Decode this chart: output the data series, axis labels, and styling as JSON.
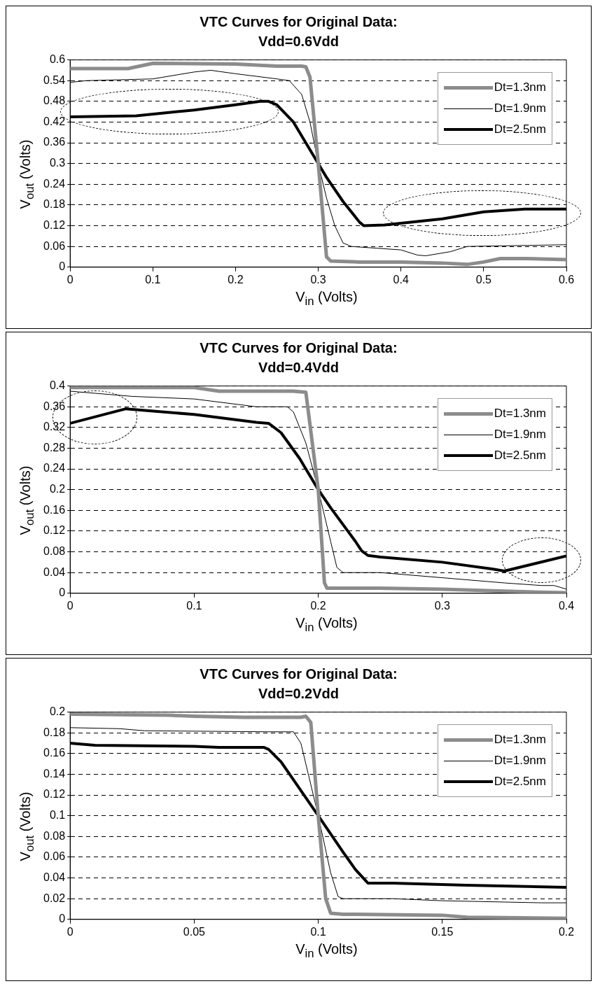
{
  "chart_data": [
    {
      "type": "line",
      "title": "VTC Curves for Original Data:",
      "subtitle": "Vdd=0.6Vdd",
      "xlabel": "V$_{in}$ (Volts)",
      "ylabel": "V$_{out}$ (Volts)",
      "xlim": [
        0,
        0.6
      ],
      "xticks": [
        0,
        0.1,
        0.2,
        0.3,
        0.4,
        0.5,
        0.6
      ],
      "ylim": [
        0,
        0.6
      ],
      "yticks": [
        0,
        0.06,
        0.12,
        0.18,
        0.24,
        0.3,
        0.36,
        0.42,
        0.48,
        0.54,
        0.6
      ],
      "grid": "y",
      "legend": "top right",
      "marker": "none",
      "line_style": "solid",
      "series": [
        {
          "name": "Dt=1.3nm",
          "color": "#8c8c8c",
          "x": [
            0,
            0.07,
            0.1,
            0.2,
            0.25,
            0.28,
            0.285,
            0.29,
            0.3,
            0.31,
            0.315,
            0.35,
            0.4,
            0.45,
            0.48,
            0.5,
            0.52,
            0.55,
            0.6
          ],
          "values": [
            0.575,
            0.575,
            0.59,
            0.588,
            0.582,
            0.582,
            0.58,
            0.55,
            0.3,
            0.03,
            0.018,
            0.015,
            0.015,
            0.012,
            0.008,
            0.015,
            0.025,
            0.025,
            0.022
          ]
        },
        {
          "name": "Dt=1.9nm",
          "color": "#000000",
          "x": [
            0,
            0.02,
            0.1,
            0.15,
            0.17,
            0.2,
            0.25,
            0.265,
            0.28,
            0.29,
            0.3,
            0.31,
            0.32,
            0.33,
            0.34,
            0.4,
            0.42,
            0.43,
            0.46,
            0.48,
            0.6
          ],
          "values": [
            0.535,
            0.54,
            0.545,
            0.565,
            0.57,
            0.56,
            0.545,
            0.54,
            0.5,
            0.42,
            0.3,
            0.2,
            0.12,
            0.07,
            0.06,
            0.05,
            0.035,
            0.033,
            0.045,
            0.06,
            0.065
          ]
        },
        {
          "name": "Dt=2.5nm",
          "color": "#000000",
          "x": [
            0,
            0.08,
            0.15,
            0.2,
            0.23,
            0.24,
            0.25,
            0.27,
            0.29,
            0.3,
            0.31,
            0.33,
            0.35,
            0.355,
            0.38,
            0.45,
            0.5,
            0.55,
            0.6
          ],
          "values": [
            0.435,
            0.438,
            0.455,
            0.47,
            0.48,
            0.48,
            0.47,
            0.42,
            0.34,
            0.3,
            0.26,
            0.19,
            0.13,
            0.12,
            0.122,
            0.14,
            0.16,
            0.168,
            0.168
          ]
        }
      ]
    },
    {
      "type": "line",
      "title": "VTC Curves for Original Data:",
      "subtitle": "Vdd=0.4Vdd",
      "xlabel": "V$_{in}$ (Volts)",
      "ylabel": "V$_{out}$ (Volts)",
      "xlim": [
        0,
        0.4
      ],
      "xticks": [
        0,
        0.1,
        0.2,
        0.3,
        0.4
      ],
      "ylim": [
        0,
        0.4
      ],
      "yticks": [
        0,
        0.04,
        0.08,
        0.12,
        0.16,
        0.2,
        0.24,
        0.28,
        0.32,
        0.36,
        0.4
      ],
      "grid": "y",
      "legend": "top right",
      "marker": "none",
      "line_style": "solid",
      "series": [
        {
          "name": "Dt=1.3nm",
          "color": "#8c8c8c",
          "x": [
            0,
            0.1,
            0.12,
            0.18,
            0.19,
            0.2,
            0.205,
            0.207,
            0.25,
            0.3,
            0.35,
            0.4
          ],
          "values": [
            0.397,
            0.397,
            0.39,
            0.39,
            0.388,
            0.2,
            0.02,
            0.01,
            0.01,
            0.008,
            0.004,
            0.001
          ]
        },
        {
          "name": "Dt=1.9nm",
          "color": "#000000",
          "x": [
            0,
            0.05,
            0.1,
            0.15,
            0.175,
            0.18,
            0.19,
            0.2,
            0.21,
            0.215,
            0.22,
            0.25,
            0.3,
            0.35,
            0.38,
            0.39,
            0.4
          ],
          "values": [
            0.39,
            0.38,
            0.375,
            0.36,
            0.36,
            0.35,
            0.29,
            0.2,
            0.1,
            0.05,
            0.04,
            0.04,
            0.03,
            0.02,
            0.015,
            0.015,
            0.008
          ]
        },
        {
          "name": "Dt=2.5nm",
          "color": "#000000",
          "x": [
            0,
            0.045,
            0.05,
            0.1,
            0.15,
            0.16,
            0.17,
            0.185,
            0.2,
            0.21,
            0.23,
            0.235,
            0.24,
            0.25,
            0.3,
            0.34,
            0.35,
            0.4
          ],
          "values": [
            0.328,
            0.356,
            0.355,
            0.345,
            0.33,
            0.328,
            0.31,
            0.26,
            0.2,
            0.165,
            0.1,
            0.082,
            0.073,
            0.07,
            0.06,
            0.047,
            0.043,
            0.072
          ]
        }
      ]
    },
    {
      "type": "line",
      "title": "VTC Curves for Original Data:",
      "subtitle": "Vdd=0.2Vdd",
      "xlabel": "V$_{in}$ (Volts)",
      "ylabel": "V$_{out}$ (Volts)",
      "xlim": [
        0,
        0.2
      ],
      "xticks": [
        0,
        0.05,
        0.1,
        0.15,
        0.2
      ],
      "ylim": [
        0,
        0.2
      ],
      "yticks": [
        0,
        0.02,
        0.04,
        0.06,
        0.08,
        0.1,
        0.12,
        0.14,
        0.16,
        0.18,
        0.2
      ],
      "grid": "y",
      "legend": "top right",
      "marker": "none",
      "line_style": "solid",
      "series": [
        {
          "name": "Dt=1.3nm",
          "color": "#8c8c8c",
          "x": [
            0,
            0.04,
            0.05,
            0.07,
            0.093,
            0.095,
            0.097,
            0.1,
            0.103,
            0.105,
            0.11,
            0.15,
            0.16,
            0.2
          ],
          "values": [
            0.198,
            0.197,
            0.196,
            0.195,
            0.195,
            0.196,
            0.19,
            0.1,
            0.02,
            0.006,
            0.005,
            0.004,
            0.002,
            0.001
          ]
        },
        {
          "name": "Dt=1.9nm",
          "color": "#000000",
          "x": [
            0,
            0.02,
            0.03,
            0.08,
            0.09,
            0.093,
            0.1,
            0.105,
            0.108,
            0.11,
            0.13,
            0.15,
            0.19,
            0.2
          ],
          "values": [
            0.185,
            0.184,
            0.182,
            0.181,
            0.181,
            0.17,
            0.1,
            0.045,
            0.022,
            0.02,
            0.02,
            0.018,
            0.016,
            0.016
          ]
        },
        {
          "name": "Dt=2.5nm",
          "color": "#000000",
          "x": [
            0,
            0.01,
            0.05,
            0.06,
            0.078,
            0.08,
            0.085,
            0.1,
            0.11,
            0.115,
            0.12,
            0.13,
            0.16,
            0.2
          ],
          "values": [
            0.17,
            0.168,
            0.167,
            0.166,
            0.166,
            0.164,
            0.152,
            0.1,
            0.065,
            0.048,
            0.035,
            0.035,
            0.033,
            0.031
          ]
        }
      ]
    }
  ]
}
